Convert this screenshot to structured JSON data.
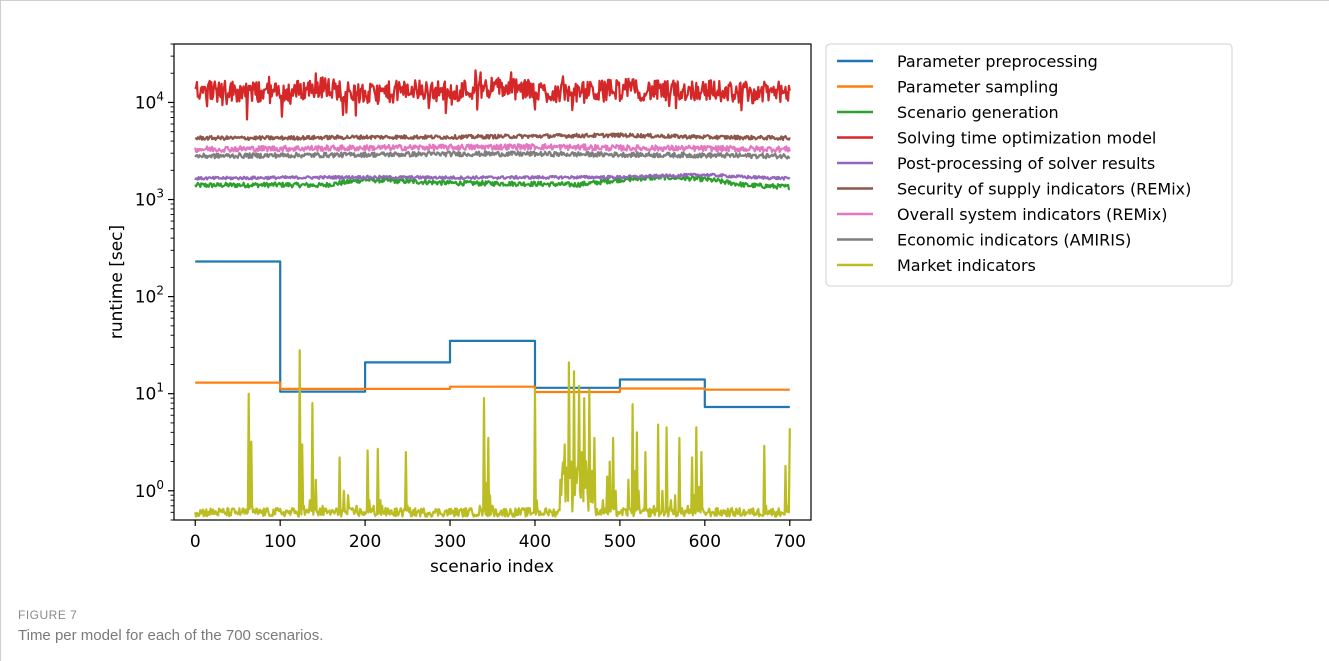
{
  "figure": {
    "label": "FIGURE 7",
    "caption": "Time per model for each of the 700 scenarios."
  },
  "chart_data": {
    "type": "line",
    "title": "",
    "xlabel": "scenario index",
    "ylabel": "runtime [sec]",
    "yscale": "log",
    "xlim": [
      -25,
      725
    ],
    "ylim": [
      0.5,
      40000
    ],
    "xticks": [
      0,
      100,
      200,
      300,
      400,
      500,
      600,
      700
    ],
    "xtick_labels": [
      "0",
      "100",
      "200",
      "300",
      "400",
      "500",
      "600",
      "700"
    ],
    "yticks": [
      1,
      10,
      100,
      1000,
      10000
    ],
    "ytick_labels": [
      "10^0",
      "10^1",
      "10^2",
      "10^3",
      "10^4"
    ],
    "grid": false,
    "legend_position": "outside-right",
    "series": [
      {
        "name": "Parameter preprocessing",
        "color": "#1f77b4",
        "style": "step",
        "x": [
          0,
          100,
          100,
          200,
          200,
          300,
          300,
          400,
          400,
          500,
          500,
          600,
          600,
          700
        ],
        "y": [
          230,
          230,
          10.5,
          10.5,
          21,
          21,
          35,
          35,
          11.5,
          11.5,
          14,
          14,
          7.3,
          7.3
        ]
      },
      {
        "name": "Parameter sampling",
        "color": "#ff7f0e",
        "style": "step",
        "x": [
          0,
          100,
          100,
          200,
          200,
          300,
          300,
          400,
          400,
          500,
          500,
          600,
          600,
          700
        ],
        "y": [
          13,
          13,
          11.2,
          11.2,
          11.2,
          11.2,
          11.8,
          11.8,
          10.4,
          10.4,
          11.3,
          11.3,
          11.0,
          11.0
        ]
      },
      {
        "name": "Scenario generation",
        "color": "#2ca02c",
        "style": "noisy",
        "x": [
          0,
          100,
          150,
          200,
          300,
          400,
          450,
          500,
          550,
          600,
          650,
          700
        ],
        "y": [
          1400,
          1420,
          1400,
          1600,
          1480,
          1450,
          1420,
          1600,
          1700,
          1620,
          1400,
          1350
        ]
      },
      {
        "name": "Solving time optimization model",
        "color": "#d62728",
        "style": "noisy",
        "x": [
          0,
          50,
          100,
          150,
          200,
          250,
          300,
          350,
          400,
          450,
          500,
          550,
          600,
          650,
          700
        ],
        "y": [
          14000,
          13000,
          12500,
          14500,
          12000,
          13500,
          13000,
          14500,
          13000,
          12500,
          14000,
          13000,
          13500,
          12500,
          13000
        ]
      },
      {
        "name": "Post-processing of solver results",
        "color": "#9467bd",
        "style": "noisy",
        "x": [
          0,
          100,
          200,
          300,
          400,
          500,
          600,
          650,
          700
        ],
        "y": [
          1650,
          1680,
          1700,
          1680,
          1690,
          1700,
          1800,
          1700,
          1650
        ]
      },
      {
        "name": "Security of supply indicators (REMix)",
        "color": "#8c564b",
        "style": "noisy",
        "x": [
          0,
          100,
          200,
          300,
          400,
          500,
          600,
          700
        ],
        "y": [
          4300,
          4300,
          4400,
          4400,
          4500,
          4600,
          4400,
          4300
        ]
      },
      {
        "name": "Overall system indicators (REMix)",
        "color": "#e377c2",
        "style": "noisy",
        "x": [
          0,
          100,
          200,
          300,
          400,
          500,
          600,
          700
        ],
        "y": [
          3300,
          3350,
          3400,
          3450,
          3500,
          3400,
          3350,
          3300
        ]
      },
      {
        "name": "Economic indicators (AMIRIS)",
        "color": "#7f7f7f",
        "style": "noisy",
        "x": [
          0,
          100,
          200,
          300,
          400,
          500,
          600,
          700
        ],
        "y": [
          2800,
          2850,
          2900,
          2950,
          2950,
          2900,
          2850,
          2800
        ]
      },
      {
        "name": "Market indicators",
        "color": "#bcbd22",
        "style": "spiky",
        "x": [
          0,
          62,
          63,
          65,
          66,
          67,
          68,
          70,
          120,
          123,
          124,
          126,
          128,
          135,
          138,
          140,
          142,
          150,
          170,
          175,
          180,
          190,
          200,
          203,
          205,
          210,
          215,
          218,
          220,
          240,
          248,
          250,
          252,
          280,
          335,
          340,
          343,
          345,
          347,
          350,
          398,
          400,
          402,
          404,
          420,
          430,
          435,
          438,
          440,
          443,
          446,
          449,
          452,
          455,
          458,
          461,
          464,
          467,
          470,
          480,
          485,
          488,
          490,
          492,
          495,
          500,
          510,
          515,
          518,
          520,
          522,
          530,
          540,
          545,
          550,
          555,
          560,
          565,
          570,
          580,
          585,
          588,
          590,
          593,
          596,
          600,
          610,
          650,
          670,
          672,
          675,
          690,
          695,
          698,
          700
        ],
        "y": [
          0.6,
          0.6,
          10,
          0.7,
          3.2,
          0.7,
          0.6,
          0.6,
          0.6,
          28,
          0.8,
          3,
          0.7,
          0.8,
          8,
          0.7,
          1.3,
          0.7,
          2.2,
          1,
          0.9,
          0.7,
          0.6,
          2.6,
          0.8,
          0.7,
          2.7,
          0.8,
          0.7,
          0.6,
          2.5,
          0.7,
          0.6,
          0.6,
          0.7,
          9,
          1.2,
          3.5,
          0.9,
          0.7,
          0.6,
          11,
          0.8,
          0.6,
          0.6,
          1.3,
          3,
          1.5,
          21,
          2,
          17,
          1.2,
          12,
          2.5,
          9,
          1.4,
          11,
          1.6,
          3.5,
          0.8,
          1.4,
          2,
          0.9,
          3.5,
          1,
          0.6,
          1.3,
          7.8,
          1.6,
          4,
          1,
          2.5,
          0.7,
          4.8,
          1,
          4.5,
          0.8,
          0.9,
          3.5,
          0.7,
          2.2,
          0.9,
          4.5,
          1.1,
          2.5,
          0.6,
          0.6,
          0.6,
          2.9,
          0.7,
          0.6,
          0.6,
          1.8,
          0.7,
          4.4
        ]
      }
    ]
  }
}
